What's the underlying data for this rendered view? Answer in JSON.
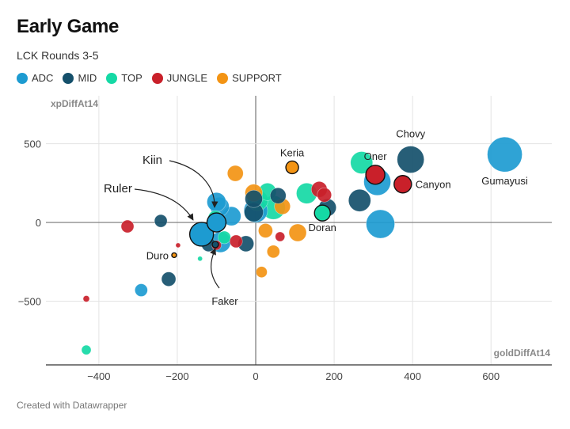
{
  "chart_data": {
    "type": "scatter",
    "title": "Early Game",
    "subtitle": "LCK Rounds 3-5",
    "footer": "Created with Datawrapper",
    "xlabel": "goldDiffAt14",
    "ylabel": "xpDiffAt14",
    "xlim": [
      -535,
      755
    ],
    "ylim": [
      -905,
      805
    ],
    "xticks": [
      -400,
      -200,
      0,
      200,
      400,
      600
    ],
    "yticks": [
      -500,
      0,
      500
    ],
    "grid": true,
    "legend_position": "top-left",
    "roles": [
      {
        "name": "ADC",
        "color": "#1d9bd1"
      },
      {
        "name": "MID",
        "color": "#15506b"
      },
      {
        "name": "TOP",
        "color": "#15d9a5"
      },
      {
        "name": "JUNGLE",
        "color": "#c9202a"
      },
      {
        "name": "SUPPORT",
        "color": "#f39414"
      }
    ],
    "points": [
      {
        "x": 635,
        "y": 432,
        "role": "ADC",
        "size": 22,
        "label": "Gumayusi"
      },
      {
        "x": 395,
        "y": 400,
        "role": "MID",
        "size": 17,
        "label": "Chovy"
      },
      {
        "x": 375,
        "y": 243,
        "role": "JUNGLE",
        "size": 11,
        "label": "Canyon",
        "outline": true
      },
      {
        "x": 310,
        "y": 258,
        "role": "ADC",
        "size": 17
      },
      {
        "x": 305,
        "y": 303,
        "role": "JUNGLE",
        "size": 12,
        "label": "Oner",
        "outline": true
      },
      {
        "x": 270,
        "y": 380,
        "role": "TOP",
        "size": 14
      },
      {
        "x": 318,
        "y": -10,
        "role": "ADC",
        "size": 18
      },
      {
        "x": 265,
        "y": 140,
        "role": "MID",
        "size": 14
      },
      {
        "x": 183,
        "y": 95,
        "role": "MID",
        "size": 11
      },
      {
        "x": 170,
        "y": 60,
        "role": "TOP",
        "size": 10,
        "label": "Doran",
        "outline": true
      },
      {
        "x": 162,
        "y": 210,
        "role": "JUNGLE",
        "size": 10
      },
      {
        "x": 175,
        "y": 175,
        "role": "JUNGLE",
        "size": 9
      },
      {
        "x": 130,
        "y": 185,
        "role": "TOP",
        "size": 13
      },
      {
        "x": 107,
        "y": -65,
        "role": "SUPPORT",
        "size": 11
      },
      {
        "x": 93,
        "y": 350,
        "role": "SUPPORT",
        "size": 8,
        "label": "Keria",
        "outline": true
      },
      {
        "x": 68,
        "y": 102,
        "role": "SUPPORT",
        "size": 10
      },
      {
        "x": 57,
        "y": 170,
        "role": "MID",
        "size": 10
      },
      {
        "x": 45,
        "y": 95,
        "role": "TOP",
        "size": 15
      },
      {
        "x": 30,
        "y": 195,
        "role": "TOP",
        "size": 11
      },
      {
        "x": 25,
        "y": -52,
        "role": "SUPPORT",
        "size": 9
      },
      {
        "x": 45,
        "y": -185,
        "role": "SUPPORT",
        "size": 8
      },
      {
        "x": 62,
        "y": -90,
        "role": "JUNGLE",
        "size": 6
      },
      {
        "x": 15,
        "y": -315,
        "role": "SUPPORT",
        "size": 7
      },
      {
        "x": 5,
        "y": 140,
        "role": "TOP",
        "size": 13
      },
      {
        "x": -5,
        "y": 188,
        "role": "SUPPORT",
        "size": 11
      },
      {
        "x": 0,
        "y": 75,
        "role": "ADC",
        "size": 15
      },
      {
        "x": -5,
        "y": 150,
        "role": "MID",
        "size": 11
      },
      {
        "x": -5,
        "y": 65,
        "role": "MID",
        "size": 12
      },
      {
        "x": -52,
        "y": 312,
        "role": "SUPPORT",
        "size": 10
      },
      {
        "x": -62,
        "y": 40,
        "role": "ADC",
        "size": 12
      },
      {
        "x": -92,
        "y": 100,
        "role": "ADC",
        "size": 12
      },
      {
        "x": -100,
        "y": 130,
        "role": "ADC",
        "size": 12
      },
      {
        "x": -100,
        "y": 0,
        "role": "ADC",
        "size": 12,
        "label": "Kiin",
        "outline": true
      },
      {
        "x": -103,
        "y": 30,
        "role": "TOP",
        "size": 9
      },
      {
        "x": -138,
        "y": -75,
        "role": "ADC",
        "size": 15,
        "label": "Ruler",
        "outline": true
      },
      {
        "x": -90,
        "y": -125,
        "role": "ADC",
        "size": 13
      },
      {
        "x": -80,
        "y": -95,
        "role": "TOP",
        "size": 8
      },
      {
        "x": -50,
        "y": -120,
        "role": "JUNGLE",
        "size": 8
      },
      {
        "x": -25,
        "y": -135,
        "role": "MID",
        "size": 10
      },
      {
        "x": -120,
        "y": -140,
        "role": "MID",
        "size": 9
      },
      {
        "x": -100,
        "y": -145,
        "role": "JUNGLE",
        "size": 6
      },
      {
        "x": -103,
        "y": -140,
        "role": "MID",
        "size": 4,
        "label": "Faker",
        "outline": true
      },
      {
        "x": -142,
        "y": -230,
        "role": "TOP",
        "size": 3
      },
      {
        "x": -198,
        "y": -145,
        "role": "JUNGLE",
        "size": 3
      },
      {
        "x": -208,
        "y": -208,
        "role": "SUPPORT",
        "size": 3,
        "label": "Duro",
        "outline": true
      },
      {
        "x": -242,
        "y": 10,
        "role": "MID",
        "size": 8
      },
      {
        "x": -222,
        "y": -360,
        "role": "MID",
        "size": 9
      },
      {
        "x": -292,
        "y": -430,
        "role": "ADC",
        "size": 8
      },
      {
        "x": -327,
        "y": -25,
        "role": "JUNGLE",
        "size": 8
      },
      {
        "x": -432,
        "y": -485,
        "role": "JUNGLE",
        "size": 4
      },
      {
        "x": -432,
        "y": -810,
        "role": "TOP",
        "size": 6
      }
    ]
  }
}
